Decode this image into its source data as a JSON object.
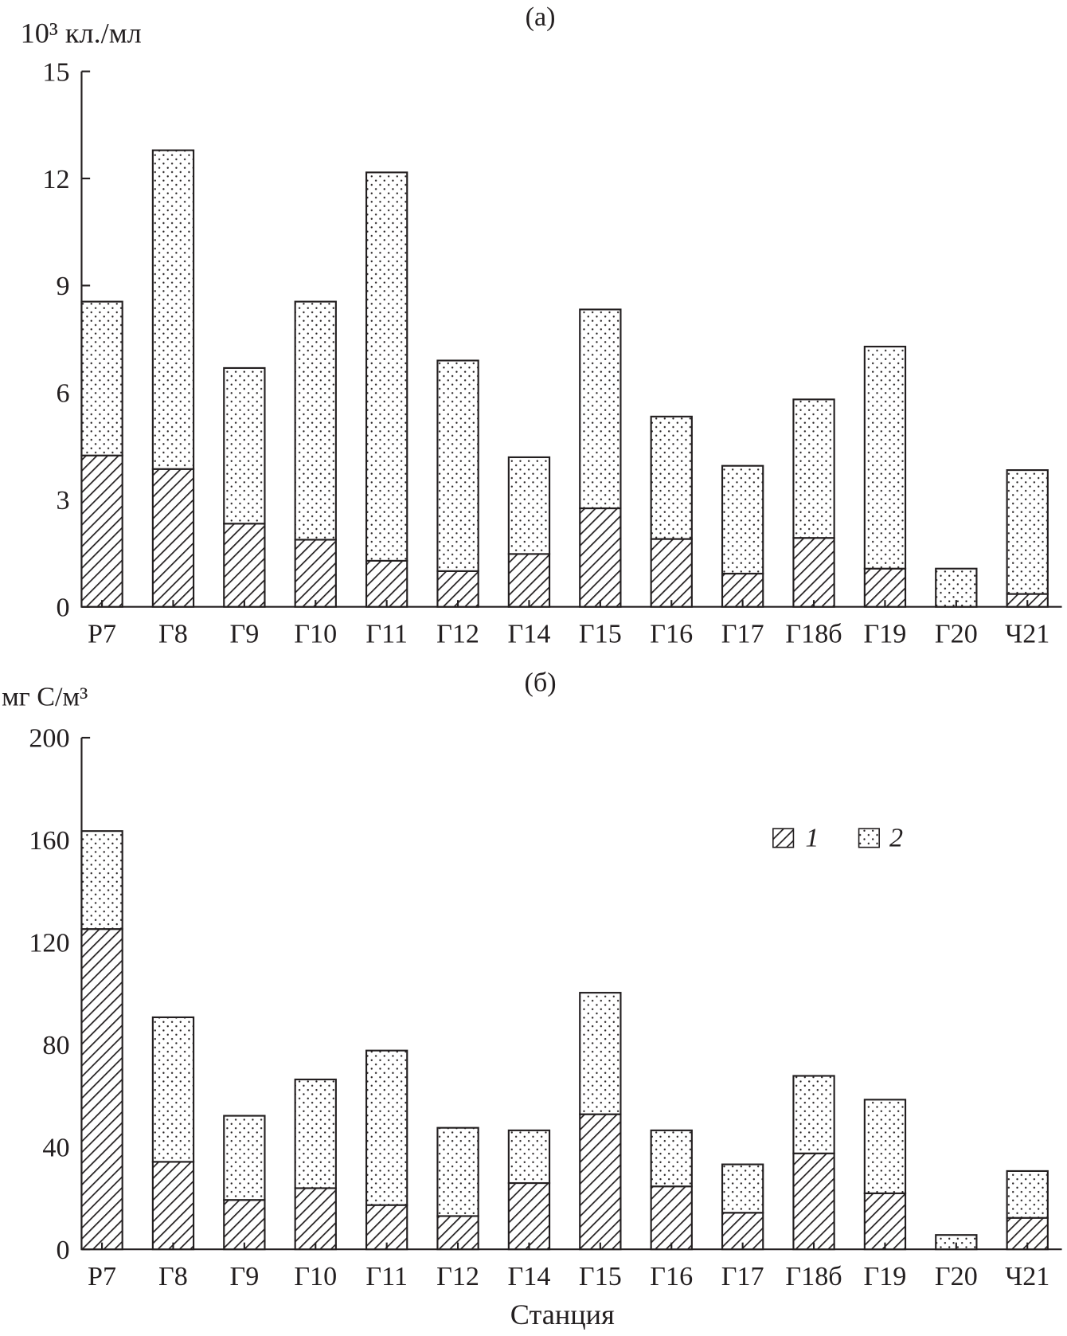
{
  "chart_data": [
    {
      "type": "bar",
      "stacked": true,
      "title": "(а)",
      "ylabel": "10³ кл./мл",
      "xlabel": "",
      "ylim": [
        0,
        15
      ],
      "yticks": [
        0,
        3,
        6,
        9,
        12,
        15
      ],
      "categories": [
        "Р7",
        "Г8",
        "Г9",
        "Г10",
        "Г11",
        "Г12",
        "Г14",
        "Г15",
        "Г16",
        "Г17",
        "Г18б",
        "Г19",
        "Г20",
        "Ч21"
      ],
      "series": [
        {
          "name": "1",
          "pattern": "hatch",
          "values": [
            4.24,
            3.86,
            2.33,
            1.88,
            1.29,
            1.0,
            1.48,
            2.76,
            1.9,
            0.93,
            1.93,
            1.07,
            0,
            0.36
          ]
        },
        {
          "name": "2",
          "pattern": "dots",
          "values": [
            4.31,
            8.93,
            4.36,
            6.67,
            10.88,
            5.9,
            2.71,
            5.57,
            3.43,
            3.02,
            3.88,
            6.22,
            1.07,
            3.47
          ]
        }
      ]
    },
    {
      "type": "bar",
      "stacked": true,
      "title": "(б)",
      "ylabel": "мг С/м³",
      "xlabel": "Станция",
      "ylim": [
        0,
        200
      ],
      "yticks": [
        0,
        40,
        80,
        120,
        160,
        200
      ],
      "categories": [
        "Р7",
        "Г8",
        "Г9",
        "Г10",
        "Г11",
        "Г12",
        "Г14",
        "Г15",
        "Г16",
        "Г17",
        "Г18б",
        "Г19",
        "Г20",
        "Ч21"
      ],
      "legend": {
        "position": "top-right",
        "items": [
          "1",
          "2"
        ]
      },
      "series": [
        {
          "name": "1",
          "pattern": "hatch",
          "values": [
            125.2,
            34.2,
            19.3,
            23.9,
            17.3,
            13.0,
            25.9,
            52.8,
            24.6,
            14.3,
            37.5,
            21.9,
            0,
            12.3
          ]
        },
        {
          "name": "2",
          "pattern": "dots",
          "values": [
            38.3,
            56.5,
            32.9,
            42.5,
            60.4,
            34.5,
            20.6,
            47.5,
            21.9,
            18.9,
            30.3,
            36.6,
            5.6,
            18.3
          ]
        }
      ]
    }
  ],
  "colors": {
    "ink": "#231f20",
    "background": "#ffffff"
  }
}
